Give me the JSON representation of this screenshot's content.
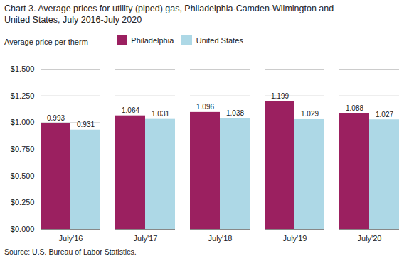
{
  "chart_data": {
    "type": "bar",
    "title": "Chart 3. Average prices for utility (piped) gas, Philadelphia-Camden-Wilmington and",
    "subtitle": "United States, July 2016-July 2020",
    "ylabel": "Average price per therm",
    "source": "Source: U.S. Bureau of Labor Statistics.",
    "categories": [
      "July'16",
      "July'17",
      "July'18",
      "July'19",
      "July'20"
    ],
    "series": [
      {
        "name": "Philadelphia",
        "color": "#9B2060",
        "values": [
          0.993,
          1.064,
          1.096,
          1.199,
          1.088
        ]
      },
      {
        "name": "United States",
        "color": "#ADD8E6",
        "values": [
          0.931,
          1.031,
          1.038,
          1.029,
          1.027
        ]
      }
    ],
    "ylim": [
      0,
      1.5
    ],
    "yticks": [
      {
        "value": 0.0,
        "label": "$0.000"
      },
      {
        "value": 0.25,
        "label": "$0.250"
      },
      {
        "value": 0.5,
        "label": "$0.500"
      },
      {
        "value": 0.75,
        "label": "$0.750"
      },
      {
        "value": 1.0,
        "label": "$1.000"
      },
      {
        "value": 1.25,
        "label": "$1.250"
      },
      {
        "value": 1.5,
        "label": "$1.500"
      }
    ],
    "grid": true,
    "legend": "upper left",
    "data_labels": true
  }
}
